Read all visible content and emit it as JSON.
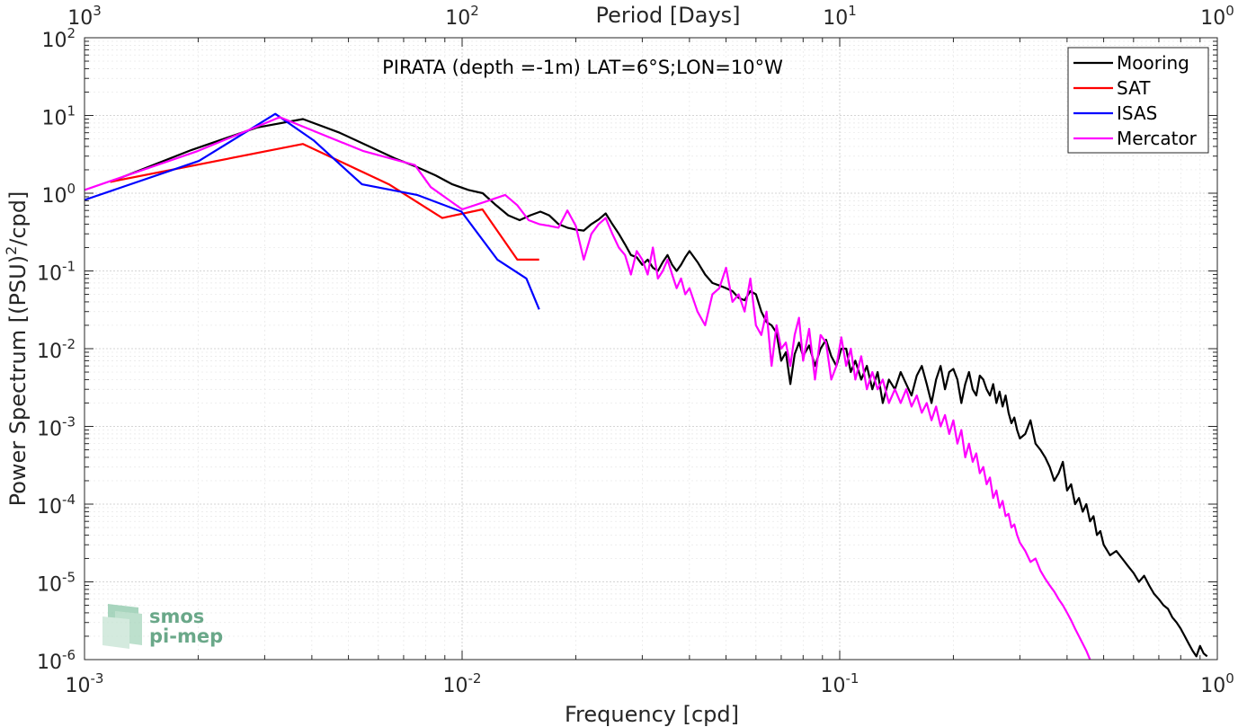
{
  "chart_data": {
    "type": "line",
    "title": "PIRATA (depth =-1m) LAT=6°S;LON=10°W",
    "xlabel": "Frequency [cpd]",
    "ylabel": "Power Spectrum [(PSU)²/cpd]",
    "ylabel_parts": {
      "pre": "Power Spectrum [(PSU)",
      "sup": "2",
      "post": "/cpd]"
    },
    "top_xlabel": "Period [Days]",
    "xscale": "log",
    "yscale": "log",
    "xlim": [
      0.001,
      1
    ],
    "ylim": [
      1e-06,
      100
    ],
    "grid": true,
    "legend_position": "top-right",
    "x_ticks": [
      {
        "value": 0.001,
        "base": "10",
        "exp": "-3"
      },
      {
        "value": 0.01,
        "base": "10",
        "exp": "-2"
      },
      {
        "value": 0.1,
        "base": "10",
        "exp": "-1"
      },
      {
        "value": 1,
        "base": "10",
        "exp": "0"
      }
    ],
    "top_ticks": [
      {
        "value": 0.001,
        "base": "10",
        "exp": "3"
      },
      {
        "value": 0.01,
        "base": "10",
        "exp": "2"
      },
      {
        "value": 0.1,
        "base": "10",
        "exp": "1"
      },
      {
        "value": 1,
        "base": "10",
        "exp": "0"
      }
    ],
    "y_ticks": [
      {
        "value": 100,
        "base": "10",
        "exp": "2"
      },
      {
        "value": 10,
        "base": "10",
        "exp": "1"
      },
      {
        "value": 1,
        "base": "10",
        "exp": "0"
      },
      {
        "value": 0.1,
        "base": "10",
        "exp": "-1"
      },
      {
        "value": 0.01,
        "base": "10",
        "exp": "-2"
      },
      {
        "value": 0.001,
        "base": "10",
        "exp": "-3"
      },
      {
        "value": 0.0001,
        "base": "10",
        "exp": "-4"
      },
      {
        "value": 1e-05,
        "base": "10",
        "exp": "-5"
      },
      {
        "value": 1e-06,
        "base": "10",
        "exp": "-6"
      }
    ],
    "series": [
      {
        "name": "Mooring",
        "color": "#000000",
        "x": [
          0.00117,
          0.00192,
          0.00286,
          0.00379,
          0.00474,
          0.00567,
          0.00664,
          0.00754,
          0.0085,
          0.00942,
          0.0104,
          0.01134,
          0.0123,
          0.01325,
          0.0142,
          0.01515,
          0.01612,
          0.017,
          0.018,
          0.019,
          0.02,
          0.021,
          0.022,
          0.023,
          0.024,
          0.025,
          0.026,
          0.027,
          0.028,
          0.029,
          0.03,
          0.031,
          0.032,
          0.033,
          0.034,
          0.035,
          0.036,
          0.037,
          0.038,
          0.039,
          0.04,
          0.042,
          0.044,
          0.046,
          0.048,
          0.05,
          0.052,
          0.054,
          0.056,
          0.058,
          0.06,
          0.062,
          0.064,
          0.066,
          0.068,
          0.07,
          0.072,
          0.074,
          0.076,
          0.078,
          0.08,
          0.083,
          0.086,
          0.089,
          0.092,
          0.095,
          0.098,
          0.101,
          0.104,
          0.107,
          0.11,
          0.114,
          0.118,
          0.122,
          0.126,
          0.13,
          0.135,
          0.14,
          0.145,
          0.15,
          0.155,
          0.16,
          0.165,
          0.17,
          0.175,
          0.18,
          0.185,
          0.19,
          0.195,
          0.2,
          0.205,
          0.21,
          0.215,
          0.22,
          0.225,
          0.23,
          0.235,
          0.24,
          0.245,
          0.25,
          0.255,
          0.26,
          0.265,
          0.27,
          0.275,
          0.28,
          0.285,
          0.29,
          0.295,
          0.3,
          0.31,
          0.32,
          0.33,
          0.34,
          0.35,
          0.36,
          0.37,
          0.38,
          0.39,
          0.4,
          0.41,
          0.42,
          0.43,
          0.44,
          0.45,
          0.46,
          0.47,
          0.48,
          0.49,
          0.5,
          0.52,
          0.54,
          0.56,
          0.58,
          0.6,
          0.62,
          0.64,
          0.66,
          0.68,
          0.7,
          0.72,
          0.74,
          0.76,
          0.78,
          0.8,
          0.82,
          0.84,
          0.86,
          0.88,
          0.9,
          0.92,
          0.94
        ],
        "y": [
          1.4,
          3.6,
          7.0,
          9.0,
          6.0,
          4.0,
          2.8,
          2.2,
          1.7,
          1.3,
          1.1,
          1.0,
          0.7,
          0.52,
          0.45,
          0.52,
          0.58,
          0.52,
          0.4,
          0.36,
          0.34,
          0.33,
          0.4,
          0.46,
          0.55,
          0.4,
          0.3,
          0.22,
          0.16,
          0.15,
          0.12,
          0.14,
          0.11,
          0.1,
          0.13,
          0.16,
          0.12,
          0.1,
          0.12,
          0.15,
          0.18,
          0.13,
          0.09,
          0.07,
          0.065,
          0.06,
          0.055,
          0.045,
          0.042,
          0.055,
          0.05,
          0.03,
          0.022,
          0.02,
          0.016,
          0.007,
          0.009,
          0.0035,
          0.0085,
          0.012,
          0.008,
          0.011,
          0.006,
          0.01,
          0.013,
          0.008,
          0.006,
          0.01,
          0.01,
          0.005,
          0.007,
          0.004,
          0.006,
          0.003,
          0.005,
          0.002,
          0.004,
          0.003,
          0.005,
          0.0035,
          0.0025,
          0.0045,
          0.006,
          0.0035,
          0.002,
          0.004,
          0.006,
          0.003,
          0.005,
          0.0055,
          0.004,
          0.002,
          0.0035,
          0.005,
          0.003,
          0.0025,
          0.0045,
          0.004,
          0.003,
          0.0025,
          0.0035,
          0.002,
          0.0028,
          0.0018,
          0.0025,
          0.0015,
          0.0011,
          0.0013,
          0.0009,
          0.0007,
          0.0008,
          0.0012,
          0.0006,
          0.0005,
          0.0004,
          0.0003,
          0.0002,
          0.00025,
          0.00035,
          0.00015,
          0.00018,
          0.0001,
          0.00012,
          8e-05,
          0.0001,
          6e-05,
          7e-05,
          4e-05,
          4.5e-05,
          3e-05,
          2.2e-05,
          2.5e-05,
          2e-05,
          1.6e-05,
          1.3e-05,
          1e-05,
          1.2e-05,
          9e-06,
          7e-06,
          6e-06,
          5e-06,
          4.5e-06,
          3.5e-06,
          3e-06,
          2.5e-06,
          2e-06,
          1.6e-06,
          1.3e-06,
          1.1e-06,
          1.5e-06,
          1.2e-06,
          1.1e-06
        ]
      },
      {
        "name": "SAT",
        "color": "#ff0000",
        "x": [
          0.00117,
          0.00379,
          0.0064,
          0.00886,
          0.01132,
          0.014,
          0.016
        ],
        "y": [
          1.4,
          4.3,
          1.3,
          0.48,
          0.62,
          0.14,
          0.14
        ]
      },
      {
        "name": "ISAS",
        "color": "#0000ff",
        "x": [
          0.001,
          0.00201,
          0.0032,
          0.00404,
          0.00543,
          0.0076,
          0.00996,
          0.0124,
          0.0148,
          0.016
        ],
        "y": [
          0.82,
          2.6,
          10.5,
          4.8,
          1.3,
          0.95,
          0.58,
          0.14,
          0.08,
          0.032
        ]
      },
      {
        "name": "Mercator",
        "color": "#ff00ff",
        "x": [
          0.001,
          0.002,
          0.00329,
          0.00546,
          0.0075,
          0.00826,
          0.01,
          0.01155,
          0.013,
          0.014,
          0.015,
          0.016,
          0.017,
          0.018,
          0.019,
          0.02,
          0.021,
          0.022,
          0.023,
          0.024,
          0.025,
          0.026,
          0.027,
          0.028,
          0.029,
          0.03,
          0.031,
          0.032,
          0.033,
          0.034,
          0.035,
          0.036,
          0.037,
          0.038,
          0.039,
          0.04,
          0.042,
          0.044,
          0.046,
          0.048,
          0.05,
          0.052,
          0.054,
          0.056,
          0.058,
          0.06,
          0.062,
          0.064,
          0.066,
          0.068,
          0.07,
          0.072,
          0.074,
          0.076,
          0.078,
          0.08,
          0.083,
          0.086,
          0.089,
          0.092,
          0.095,
          0.098,
          0.101,
          0.104,
          0.107,
          0.11,
          0.114,
          0.118,
          0.122,
          0.126,
          0.13,
          0.135,
          0.14,
          0.145,
          0.15,
          0.155,
          0.16,
          0.165,
          0.17,
          0.175,
          0.18,
          0.185,
          0.19,
          0.195,
          0.2,
          0.205,
          0.21,
          0.215,
          0.22,
          0.225,
          0.23,
          0.235,
          0.24,
          0.245,
          0.25,
          0.255,
          0.26,
          0.265,
          0.27,
          0.275,
          0.28,
          0.285,
          0.29,
          0.295,
          0.3,
          0.31,
          0.32,
          0.33,
          0.34,
          0.35,
          0.36,
          0.37,
          0.38,
          0.39,
          0.4,
          0.41,
          0.42,
          0.43,
          0.44,
          0.45,
          0.46
        ],
        "y": [
          1.1,
          3.5,
          9.5,
          3.5,
          2.3,
          1.2,
          0.62,
          0.78,
          0.95,
          0.7,
          0.45,
          0.4,
          0.38,
          0.36,
          0.6,
          0.38,
          0.14,
          0.3,
          0.4,
          0.48,
          0.3,
          0.2,
          0.16,
          0.09,
          0.18,
          0.14,
          0.09,
          0.2,
          0.08,
          0.1,
          0.14,
          0.09,
          0.06,
          0.08,
          0.05,
          0.06,
          0.03,
          0.02,
          0.05,
          0.06,
          0.11,
          0.04,
          0.05,
          0.03,
          0.08,
          0.02,
          0.015,
          0.03,
          0.006,
          0.02,
          0.01,
          0.012,
          0.006,
          0.015,
          0.025,
          0.007,
          0.018,
          0.004,
          0.015,
          0.012,
          0.004,
          0.006,
          0.014,
          0.006,
          0.01,
          0.004,
          0.008,
          0.003,
          0.005,
          0.003,
          0.004,
          0.002,
          0.003,
          0.002,
          0.003,
          0.0018,
          0.0025,
          0.0015,
          0.002,
          0.0012,
          0.0018,
          0.001,
          0.0014,
          0.0008,
          0.0012,
          0.0006,
          0.0009,
          0.0004,
          0.0006,
          0.00035,
          0.00045,
          0.00025,
          0.0003,
          0.00018,
          0.00022,
          0.00012,
          0.00015,
          9e-05,
          0.00011,
          7e-05,
          7.5e-05,
          5e-05,
          5.5e-05,
          4e-05,
          3.2e-05,
          2.5e-05,
          1.8e-05,
          2e-05,
          1.4e-05,
          1.1e-05,
          9e-06,
          7.5e-06,
          6e-06,
          5e-06,
          4e-06,
          3.2e-06,
          2.5e-06,
          2e-06,
          1.6e-06,
          1.3e-06,
          1e-06
        ]
      }
    ]
  },
  "logo": {
    "line1": "smos",
    "line2": "pi-mep"
  }
}
